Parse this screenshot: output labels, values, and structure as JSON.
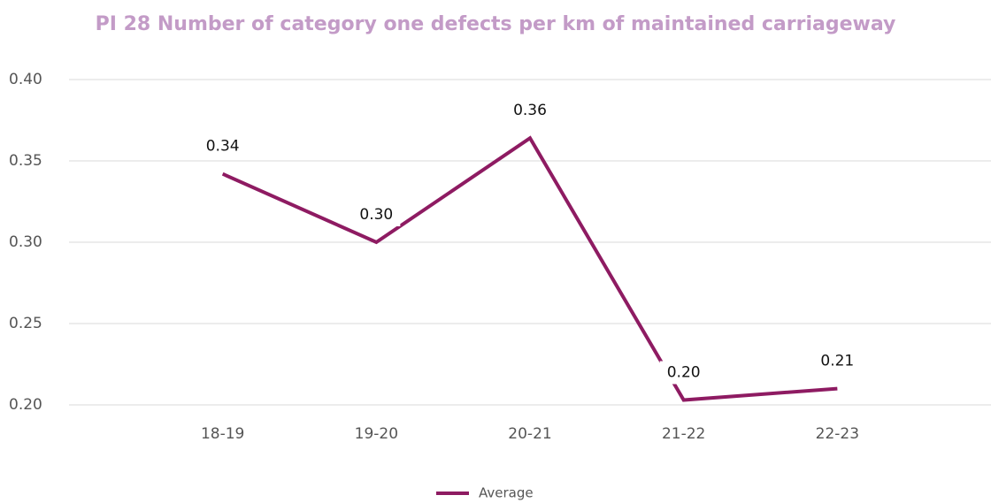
{
  "chart_data": {
    "type": "line",
    "title": "PI 28  Number of category one defects per km of maintained carriageway",
    "categories": [
      "18-19",
      "19-20",
      "20-21",
      "21-22",
      "22-23"
    ],
    "series": [
      {
        "name": "Average",
        "color": "#8e1b62",
        "values": [
          0.342,
          0.3,
          0.364,
          0.203,
          0.21
        ],
        "value_labels": [
          "0.34",
          "0.30",
          "0.36",
          "0.20",
          "0.21"
        ]
      }
    ],
    "ylim": [
      0.2,
      0.4
    ],
    "yticks": [
      {
        "value": 0.2,
        "label": "0.20"
      },
      0.25,
      {
        "value": 0.3,
        "label": "0.30"
      },
      0.35,
      {
        "value": 0.4,
        "label": "0.40"
      }
    ],
    "grid": true,
    "legend": "bottom"
  }
}
